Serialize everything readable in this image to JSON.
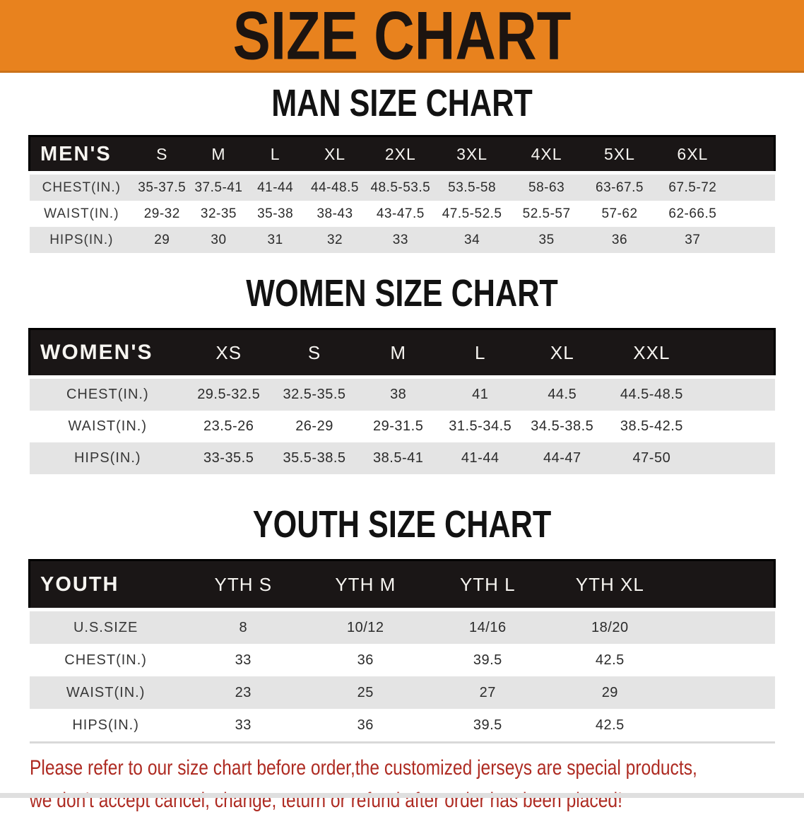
{
  "banner": {
    "title": "SIZE CHART"
  },
  "colors": {
    "banner-bg": "#E8821E",
    "header-bg": "#1A1616",
    "stripe": "#E4E4E4",
    "note-red": "#AE2B22"
  },
  "sections": [
    {
      "id": "men",
      "heading": "MAN SIZE CHART",
      "table": {
        "header": [
          "MEN'S",
          "S",
          "M",
          "L",
          "XL",
          "2XL",
          "3XL",
          "4XL",
          "5XL",
          "6XL"
        ],
        "rows": [
          [
            "CHEST(IN.)",
            "35-37.5",
            "37.5-41",
            "41-44",
            "44-48.5",
            "48.5-53.5",
            "53.5-58",
            "58-63",
            "63-67.5",
            "67.5-72"
          ],
          [
            "WAIST(IN.)",
            "29-32",
            "32-35",
            "35-38",
            "38-43",
            "43-47.5",
            "47.5-52.5",
            "52.5-57",
            "57-62",
            "62-66.5"
          ],
          [
            "HIPS(IN.)",
            "29",
            "30",
            "31",
            "32",
            "33",
            "34",
            "35",
            "36",
            "37"
          ]
        ]
      }
    },
    {
      "id": "women",
      "heading": "WOMEN SIZE CHART",
      "table": {
        "header": [
          "WOMEN'S",
          "XS",
          "S",
          "M",
          "L",
          "XL",
          "XXL"
        ],
        "rows": [
          [
            "CHEST(IN.)",
            "29.5-32.5",
            "32.5-35.5",
            "38",
            "41",
            "44.5",
            "44.5-48.5"
          ],
          [
            "WAIST(IN.)",
            "23.5-26",
            "26-29",
            "29-31.5",
            "31.5-34.5",
            "34.5-38.5",
            "38.5-42.5"
          ],
          [
            "HIPS(IN.)",
            "33-35.5",
            "35.5-38.5",
            "38.5-41",
            "41-44",
            "44-47",
            "47-50"
          ]
        ]
      }
    },
    {
      "id": "youth",
      "heading": "YOUTH SIZE CHART",
      "table": {
        "header": [
          "YOUTH",
          "YTH S",
          "YTH M",
          "YTH L",
          "YTH XL"
        ],
        "rows": [
          [
            "U.S.SIZE",
            "8",
            "10/12",
            "14/16",
            "18/20"
          ],
          [
            "CHEST(IN.)",
            "33",
            "36",
            "39.5",
            "42.5"
          ],
          [
            "WAIST(IN.)",
            "23",
            "25",
            "27",
            "29"
          ],
          [
            "HIPS(IN.)",
            "33",
            "36",
            "39.5",
            "42.5"
          ]
        ]
      }
    }
  ],
  "footer": {
    "line1": "Please refer to our size chart before order,the customized jerseys are special products,",
    "line2": "we don't accept cancel, change, teturn or refund after order has been placed!"
  }
}
